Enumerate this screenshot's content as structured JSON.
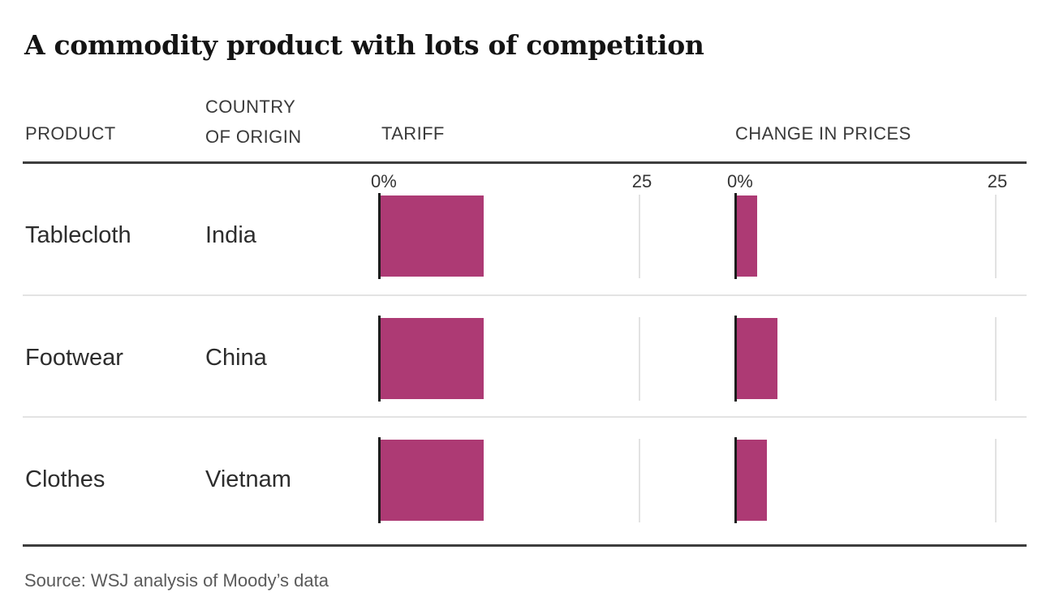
{
  "title": "A commodity product with lots of competition",
  "source_note": "Source: WSJ analysis of Moody’s data",
  "colors": {
    "bar": "#ad3a74",
    "rule_dark": "#3d3d3d",
    "rule_light": "#e3e3e3",
    "axis_line": "#1c1c1c",
    "tick_line": "#e2e2e2"
  },
  "headers": {
    "product": "PRODUCT",
    "country_line1": "COUNTRY",
    "country_line2": "OF ORIGIN",
    "tariff": "TARIFF",
    "change": "CHANGE IN PRICES"
  },
  "chart_data": {
    "type": "bar",
    "orientation": "horizontal",
    "title": "A commodity product with lots of competition",
    "categories": [
      "Tablecloth",
      "Footwear",
      "Clothes"
    ],
    "country_of_origin": [
      "India",
      "China",
      "Vietnam"
    ],
    "series": [
      {
        "name": "TARIFF",
        "values": [
          10,
          10,
          10
        ],
        "unit": "%"
      },
      {
        "name": "CHANGE IN PRICES",
        "values": [
          2,
          4,
          3
        ],
        "unit": "%"
      }
    ],
    "xlim": [
      0,
      25
    ],
    "axis_tick_labels": [
      "0%",
      "25"
    ],
    "gridlines": "single light tick line at 25 per panel, dark baseline at 0",
    "legend": "none",
    "source": "Source: WSJ analysis of Moody’s data"
  }
}
